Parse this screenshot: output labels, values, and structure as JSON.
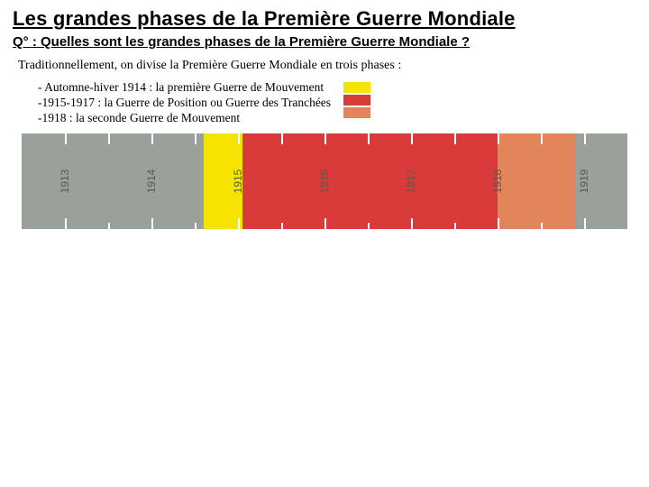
{
  "title": "Les grandes phases de la Première Guerre Mondiale",
  "question": "Q° : Quelles sont les grandes phases de la Première Guerre Mondiale ?",
  "intro": "Traditionnellement, on divise la Première Guerre Mondiale en trois phases :",
  "bullets": {
    "b1": "- Automne-hiver 1914 : la première Guerre de Mouvement",
    "b2": "-1915-1917 : la Guerre de Position ou Guerre des Tranchées",
    "b3": "-1918 : la seconde Guerre de Mouvement"
  },
  "colors": {
    "phase1": "#f4e400",
    "phase2": "#d93a3a",
    "phase3": "#e3855b",
    "timeline_bg": "#9aa09a",
    "tick": "#ffffff",
    "year_text": "#555a55"
  },
  "timeline": {
    "domain_start": 1912.5,
    "domain_end": 1919.5,
    "major_years": [
      1913,
      1914,
      1915,
      1916,
      1917,
      1918,
      1919
    ],
    "minor_per_year": 1,
    "phases": [
      {
        "name": "phase1",
        "start": 1914.6,
        "end": 1915.05,
        "color": "#f4e400"
      },
      {
        "name": "phase2",
        "start": 1915.05,
        "end": 1918.0,
        "color": "#d93a3a"
      },
      {
        "name": "phase3",
        "start": 1918.0,
        "end": 1918.9,
        "color": "#e3855b"
      }
    ]
  }
}
